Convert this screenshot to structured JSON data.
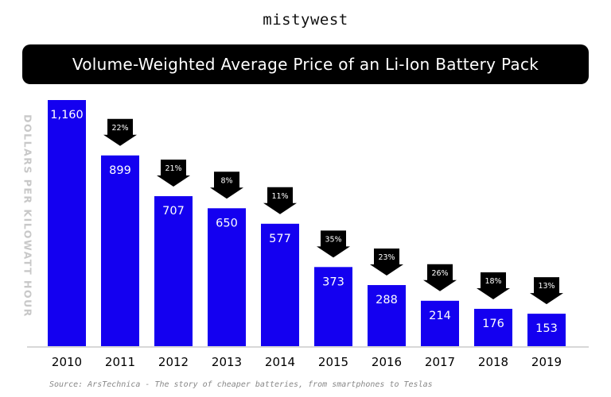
{
  "brand": "mistywest",
  "source": "Source: ArsTechnica - The story of cheaper batteries, from smartphones to Teslas",
  "colors": {
    "bar": "#1400f0",
    "arrow": "#000000",
    "title_bg": "#000000"
  },
  "chart_data": {
    "type": "bar",
    "title": "Volume-Weighted Average Price of an Li-Ion Battery Pack",
    "ylabel": "DOLLARS PER KILOWATT HOUR",
    "xlabel": "",
    "categories": [
      "2010",
      "2011",
      "2012",
      "2013",
      "2014",
      "2015",
      "2016",
      "2017",
      "2018",
      "2019"
    ],
    "values": [
      1160,
      899,
      707,
      650,
      577,
      373,
      288,
      214,
      176,
      153
    ],
    "value_labels": [
      "1,160",
      "899",
      "707",
      "650",
      "577",
      "373",
      "288",
      "214",
      "176",
      "153"
    ],
    "decline_labels": [
      "",
      "22%",
      "21%",
      "8%",
      "11%",
      "35%",
      "23%",
      "26%",
      "18%",
      "13%"
    ],
    "ylim": [
      0,
      1160
    ],
    "grid": false,
    "legend": "none"
  }
}
